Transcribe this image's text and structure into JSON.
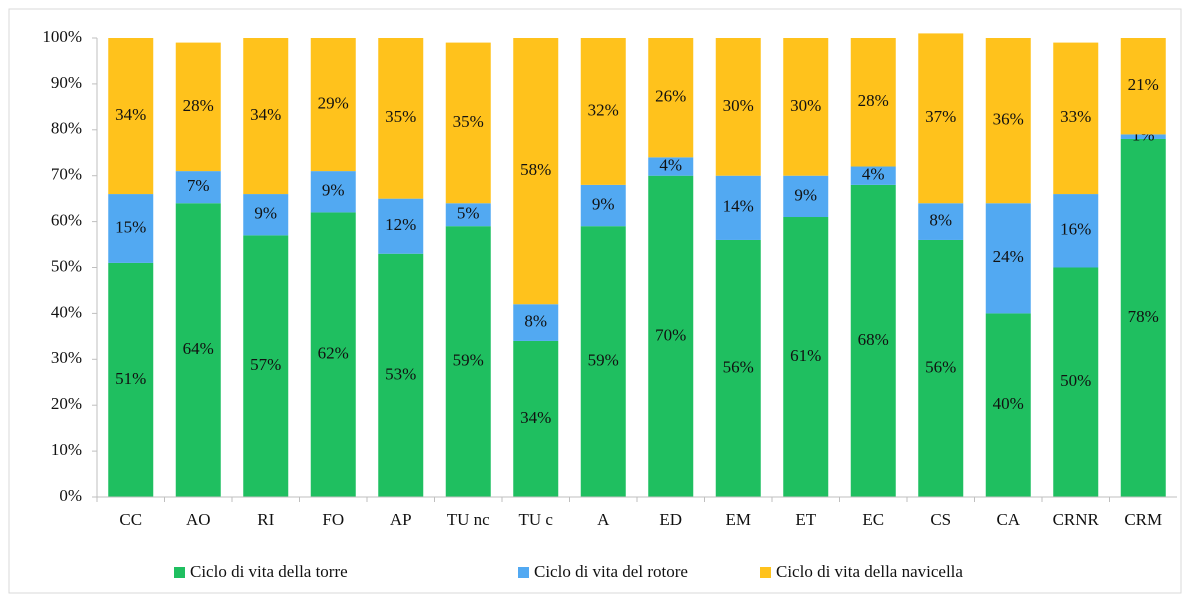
{
  "chart_data": {
    "type": "stacked_bar",
    "categories": [
      "CC",
      "AO",
      "RI",
      "FO",
      "AP",
      "TU nc",
      "TU c",
      "A",
      "ED",
      "EM",
      "ET",
      "EC",
      "CS",
      "CA",
      "CRNR",
      "CRM"
    ],
    "series": [
      {
        "name": "Ciclo di vita della torre",
        "color": "#1fbf60",
        "values": [
          51,
          64,
          57,
          62,
          53,
          59,
          34,
          59,
          70,
          56,
          61,
          68,
          56,
          40,
          50,
          78
        ],
        "value_labels": [
          "51%",
          "64%",
          "57%",
          "62%",
          "53%",
          "59%",
          "34%",
          "59%",
          "70%",
          "56%",
          "61%",
          "68%",
          "56%",
          "40%",
          "50%",
          "78%"
        ]
      },
      {
        "name": "Ciclo di vita del rotore",
        "color": "#52a9f2",
        "values": [
          15,
          7,
          9,
          9,
          12,
          5,
          8,
          9,
          4,
          14,
          9,
          4,
          8,
          24,
          16,
          1
        ],
        "value_labels": [
          "15%",
          "7%",
          "9%",
          "9%",
          "12%",
          "5%",
          "8%",
          "9%",
          "4%",
          "14%",
          "9%",
          "4%",
          "8%",
          "24%",
          "16%",
          "1%"
        ]
      },
      {
        "name": "Ciclo di vita della navicella",
        "color": "#ffc21c",
        "values": [
          34,
          28,
          34,
          29,
          35,
          35,
          58,
          32,
          26,
          30,
          30,
          28,
          37,
          36,
          33,
          21
        ],
        "value_labels": [
          "34%",
          "28%",
          "34%",
          "29%",
          "35%",
          "35%",
          "58%",
          "32%",
          "26%",
          "30%",
          "30%",
          "28%",
          "37%",
          "36%",
          "33%",
          "21%"
        ]
      }
    ],
    "ylim": [
      0,
      100
    ],
    "yticks": [
      {
        "value": 0,
        "label": "0%"
      },
      {
        "value": 10,
        "label": "10%"
      },
      {
        "value": 20,
        "label": "20%"
      },
      {
        "value": 30,
        "label": "30%"
      },
      {
        "value": 40,
        "label": "40%"
      },
      {
        "value": 50,
        "label": "50%"
      },
      {
        "value": 60,
        "label": "60%"
      },
      {
        "value": 70,
        "label": "70%"
      },
      {
        "value": 80,
        "label": "80%"
      },
      {
        "value": 90,
        "label": "90%"
      },
      {
        "value": 100,
        "label": "100%"
      }
    ],
    "grid": false,
    "legend": "bottom"
  }
}
